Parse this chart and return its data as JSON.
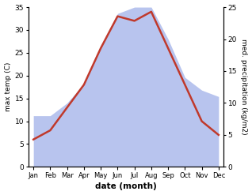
{
  "months": [
    "Jan",
    "Feb",
    "Mar",
    "Apr",
    "May",
    "Jun",
    "Jul",
    "Aug",
    "Sep",
    "Oct",
    "Nov",
    "Dec"
  ],
  "temp": [
    6,
    8,
    13,
    18,
    26,
    33,
    32,
    34,
    26,
    18,
    10,
    7
  ],
  "precip": [
    8,
    8,
    10,
    13,
    19,
    24,
    25,
    25,
    20,
    14,
    12,
    11
  ],
  "temp_color": "#c0392b",
  "precip_fill_color": "#b8c4ee",
  "xlabel": "date (month)",
  "ylabel_left": "max temp (C)",
  "ylabel_right": "med. precipitation (kg/m2)",
  "ylim_left": [
    0,
    35
  ],
  "ylim_right": [
    0,
    25
  ],
  "yticks_left": [
    0,
    5,
    10,
    15,
    20,
    25,
    30,
    35
  ],
  "yticks_right": [
    0,
    5,
    10,
    15,
    20,
    25
  ],
  "background_color": "#ffffff"
}
